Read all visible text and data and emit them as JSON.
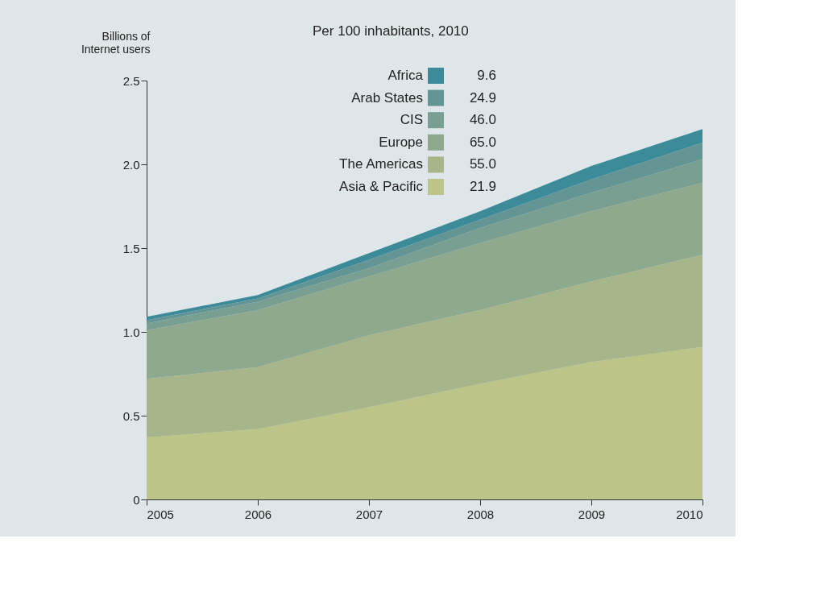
{
  "chart_data": {
    "type": "area",
    "stacked": true,
    "ylabel": "Billions of Internet users",
    "legend_title": "Per 100 inhabitants, 2010",
    "x": [
      2005,
      2006,
      2007,
      2008,
      2009,
      2010
    ],
    "xlim": [
      2005,
      2010
    ],
    "xticks": [
      2005,
      2006,
      2007,
      2008,
      2009,
      2010
    ],
    "ylim": [
      0,
      2.5
    ],
    "yticks": [
      {
        "value": 0,
        "label": "0"
      },
      0.5,
      {
        "value": 1,
        "label": "1.0"
      },
      1.5,
      {
        "value": 2,
        "label": "2.0"
      },
      2.5
    ],
    "grid": false,
    "legend": "top",
    "series": [
      {
        "name": "Asia & Pacific",
        "color": "#bdc488",
        "values": [
          0.37,
          0.42,
          0.55,
          0.69,
          0.82,
          0.91
        ]
      },
      {
        "name": "The Americas",
        "color": "#a7b58b",
        "values": [
          0.35,
          0.37,
          0.43,
          0.44,
          0.48,
          0.55
        ]
      },
      {
        "name": "Europe",
        "color": "#8ea98e",
        "values": [
          0.29,
          0.34,
          0.35,
          0.4,
          0.42,
          0.43
        ]
      },
      {
        "name": "CIS",
        "color": "#799e92",
        "values": [
          0.04,
          0.05,
          0.05,
          0.09,
          0.11,
          0.14
        ]
      },
      {
        "name": "Arab States",
        "color": "#649595",
        "values": [
          0.02,
          0.02,
          0.05,
          0.05,
          0.08,
          0.1
        ]
      },
      {
        "name": "Africa",
        "color": "#3d8a99",
        "values": [
          0.02,
          0.02,
          0.04,
          0.05,
          0.08,
          0.08
        ]
      }
    ],
    "annotations": [
      "21.9",
      "55.0",
      "65.0",
      "46.0",
      "24.9",
      "9.6"
    ]
  }
}
